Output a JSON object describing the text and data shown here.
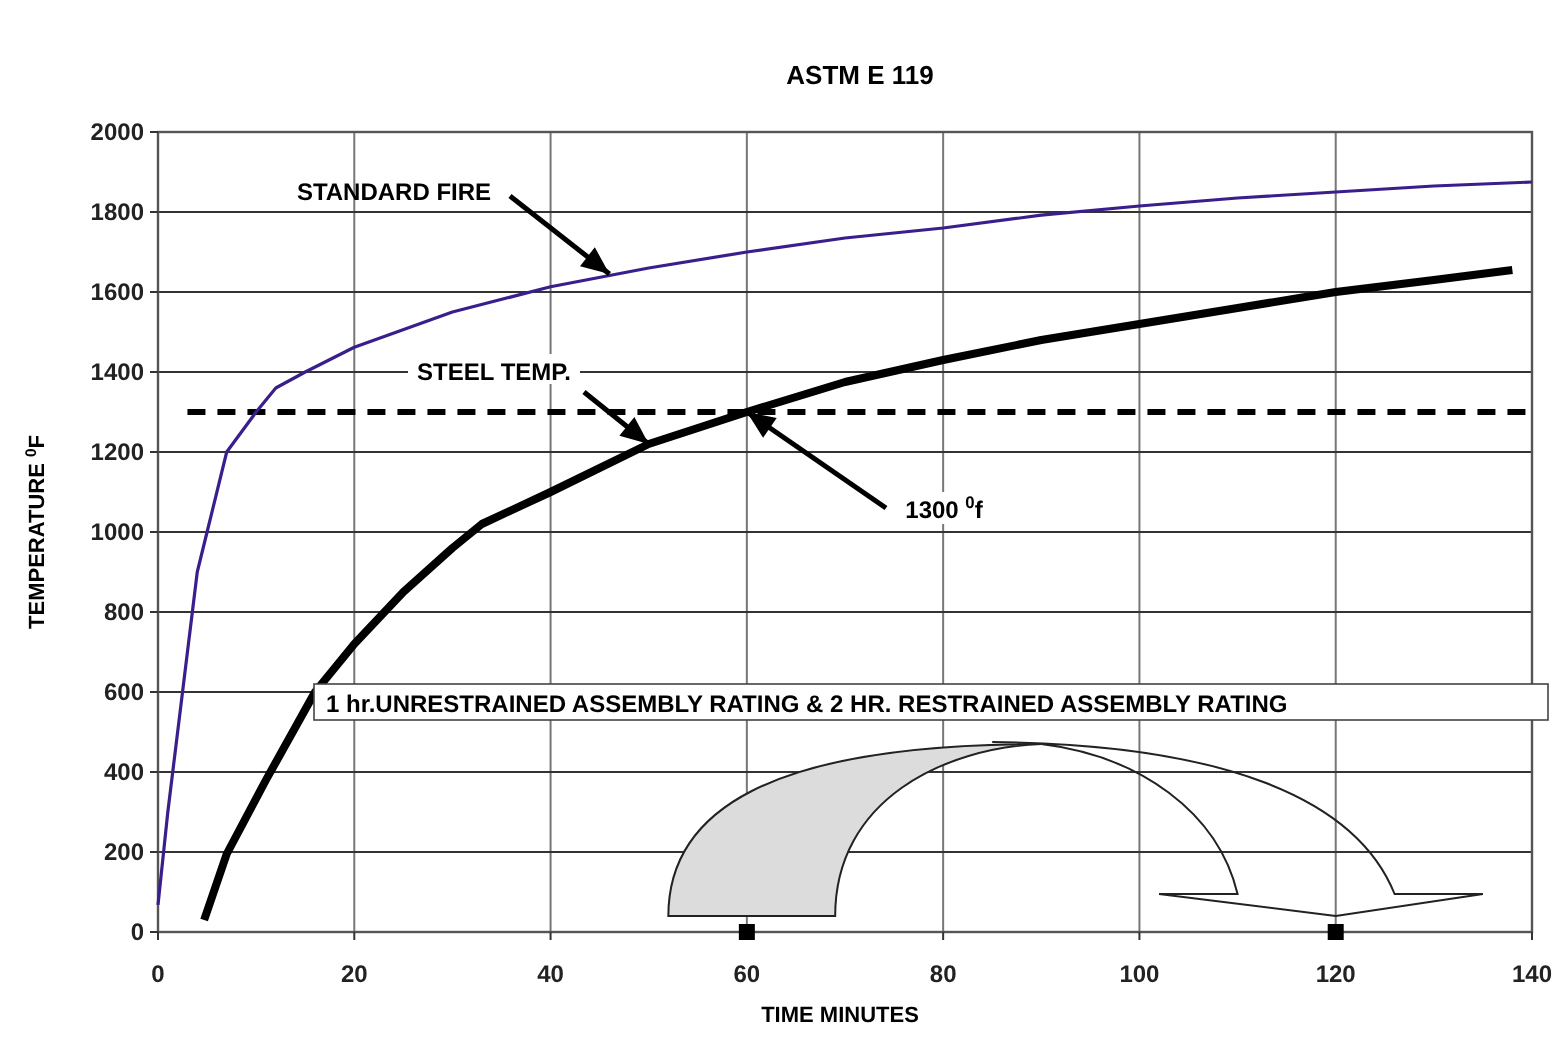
{
  "chart_data": {
    "type": "line",
    "title": "ASTM  E 119",
    "xlabel": "TIME  MINUTES",
    "ylabel": "TEMPERATURE  $^{0}$F",
    "xlim": [
      0,
      140
    ],
    "xticks": [
      0,
      20,
      40,
      60,
      80,
      100,
      120,
      140
    ],
    "ylim": [
      0,
      2000
    ],
    "yticks": [
      0,
      200,
      400,
      600,
      800,
      1000,
      1200,
      1400,
      1600,
      1800,
      2000
    ],
    "grid": true,
    "series": [
      {
        "color": "#3a1f8c",
        "x": [
          0,
          1,
          2.5,
          4,
          5,
          7,
          10,
          12,
          15,
          20,
          30,
          40,
          50,
          60,
          70,
          80,
          90,
          100,
          110,
          120,
          130,
          140
        ],
        "values": [
          68,
          300,
          600,
          900,
          1000,
          1200,
          1300,
          1360,
          1400,
          1462,
          1550,
          1613,
          1660,
          1700,
          1735,
          1760,
          1792,
          1815,
          1835,
          1850,
          1865,
          1875
        ]
      },
      {
        "color": "#000000",
        "x": [
          4.7,
          7,
          11,
          16,
          20,
          25,
          30,
          33,
          40,
          50,
          60,
          70,
          80,
          90,
          100,
          110,
          120,
          130,
          138
        ],
        "values": [
          30,
          195,
          380,
          600,
          720,
          850,
          960,
          1020,
          1100,
          1220,
          1300,
          1375,
          1430,
          1480,
          1520,
          1560,
          1600,
          1630,
          1655
        ]
      },
      {
        "type": "scatter",
        "marker": "square",
        "color": "#000000",
        "x": [
          60,
          120
        ],
        "values": [
          0,
          0
        ]
      }
    ],
    "ref_lines": [
      {
        "axis": "y",
        "value": 1300,
        "color": "#000000",
        "line_style": "dashed"
      }
    ],
    "annotations": [
      {
        "text": "STANDARD FIRE",
        "x": 46,
        "y": 1645
      },
      {
        "text": "STEEL TEMP.",
        "x": 50,
        "y": 1220
      },
      {
        "text": "1300 $^{0}$f",
        "x": 60,
        "y": 1300
      },
      "1 hr.UNRESTRAINED ASSEMBLY RATING & 2 HR. RESTRAINED ASSEMBLY RATING"
    ]
  }
}
